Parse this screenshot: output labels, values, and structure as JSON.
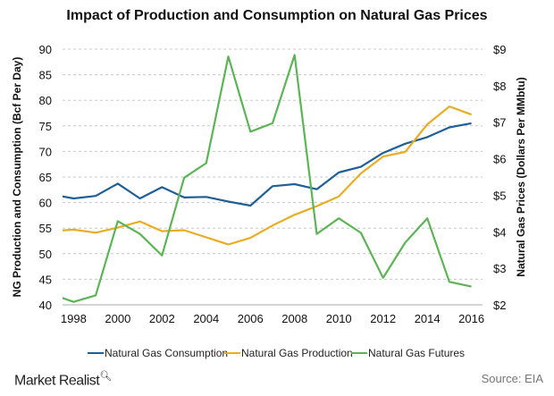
{
  "chart_data": {
    "type": "line",
    "title": "Impact of Production and Consumption on Natural Gas Prices",
    "ylabel": "NG Production and Consumption (Bcf Per Day)",
    "y2label": "Natural Gas Prices (Dollars Per MMbtu)",
    "xlim": [
      1997.5,
      2016.5
    ],
    "ylim": [
      40,
      90
    ],
    "y2lim": [
      2,
      9
    ],
    "yticks": [
      "40",
      "45",
      "50",
      "55",
      "60",
      "65",
      "70",
      "75",
      "80",
      "85",
      "90"
    ],
    "y2ticks": [
      "$2",
      "$3",
      "$4",
      "$5",
      "$6",
      "$7",
      "$8",
      "$9"
    ],
    "xticks": [
      "1998",
      "2000",
      "2002",
      "2004",
      "2006",
      "2008",
      "2010",
      "2012",
      "2014",
      "2016"
    ],
    "grid": true,
    "legend_position": "bottom",
    "x": [
      1997,
      1998,
      1999,
      2000,
      2001,
      2002,
      2003,
      2004,
      2005,
      2006,
      2007,
      2008,
      2009,
      2010,
      2011,
      2012,
      2013,
      2014,
      2015,
      2016
    ],
    "series": [
      {
        "name": "Natural Gas Consumption",
        "axis": "left",
        "color": "#1f5f96",
        "values": [
          61.6,
          60.8,
          61.3,
          63.7,
          60.8,
          63.0,
          61.0,
          61.1,
          60.2,
          59.4,
          63.2,
          63.6,
          62.6,
          65.9,
          67.0,
          69.7,
          71.5,
          72.8,
          74.7,
          75.5
        ]
      },
      {
        "name": "Natural Gas Production",
        "axis": "left",
        "color": "#e8ad22",
        "values": [
          54.4,
          54.7,
          54.1,
          55.1,
          56.3,
          54.4,
          54.6,
          53.2,
          51.8,
          53.1,
          55.5,
          57.6,
          59.3,
          61.2,
          65.7,
          69.0,
          69.9,
          75.3,
          78.8,
          77.2
        ]
      },
      {
        "name": "Natural Gas Futures",
        "axis": "right",
        "color": "#5db456",
        "values": [
          2.29,
          2.08,
          2.26,
          4.29,
          3.94,
          3.35,
          5.48,
          5.88,
          8.8,
          6.74,
          6.97,
          8.84,
          3.94,
          4.37,
          3.97,
          2.74,
          3.7,
          4.37,
          2.63,
          2.5
        ]
      }
    ]
  },
  "footer": {
    "brand": "Market Realist",
    "source": "Source: EIA"
  }
}
